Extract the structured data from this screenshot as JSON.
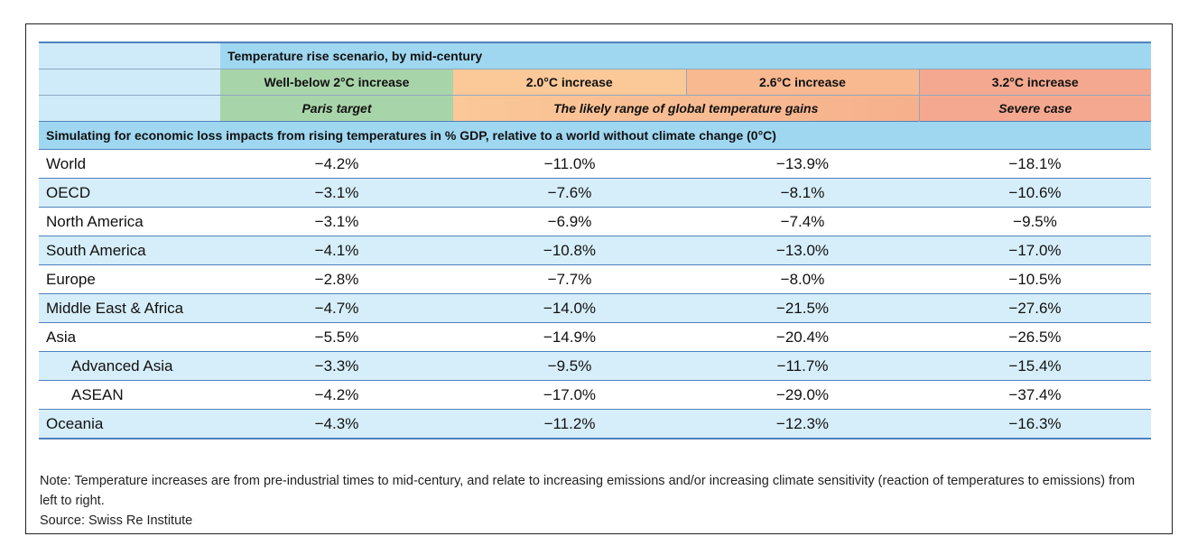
{
  "header": {
    "scenario_title": "Temperature rise scenario, by mid-century",
    "scenarios": [
      "Well-below 2°C increase",
      "2.0°C increase",
      "2.6°C increase",
      "3.2°C increase"
    ],
    "subtitles": {
      "paris": "Paris target",
      "likely": "The likely range of global temperature gains",
      "severe": "Severe case"
    }
  },
  "section_title": "Simulating for economic loss impacts from rising temperatures in % GDP, relative to a world without climate change (0°C)",
  "rows": [
    {
      "region": "World",
      "values": [
        "−4.2%",
        "−11.0%",
        "−13.9%",
        "−18.1%"
      ]
    },
    {
      "region": "OECD",
      "values": [
        "−3.1%",
        "−7.6%",
        "−8.1%",
        "−10.6%"
      ]
    },
    {
      "region": "North America",
      "values": [
        "−3.1%",
        "−6.9%",
        "−7.4%",
        "−9.5%"
      ]
    },
    {
      "region": "South America",
      "values": [
        "−4.1%",
        "−10.8%",
        "−13.0%",
        "−17.0%"
      ]
    },
    {
      "region": "Europe",
      "values": [
        "−2.8%",
        "−7.7%",
        "−8.0%",
        "−10.5%"
      ]
    },
    {
      "region": "Middle East & Africa",
      "values": [
        "−4.7%",
        "−14.0%",
        "−21.5%",
        "−27.6%"
      ]
    },
    {
      "region": "Asia",
      "values": [
        "−5.5%",
        "−14.9%",
        "−20.4%",
        "−26.5%"
      ]
    },
    {
      "region": "Advanced Asia",
      "values": [
        "−3.3%",
        "−9.5%",
        "−11.7%",
        "−15.4%"
      ]
    },
    {
      "region": "ASEAN",
      "values": [
        "−4.2%",
        "−17.0%",
        "−29.0%",
        "−37.4%"
      ]
    },
    {
      "region": "Oceania",
      "values": [
        "−4.3%",
        "−11.2%",
        "−12.3%",
        "−16.3%"
      ]
    }
  ],
  "note": {
    "text": "Note: Temperature increases are from pre-industrial times to mid-century, and relate to increasing emissions and/or increasing climate sensitivity (reaction of temperatures to emissions) from left to right.",
    "source": "Source: Swiss Re Institute"
  },
  "colors": {
    "header_blue": "#9fd7f0",
    "row_alt_blue": "#d6eef9",
    "green": "#a8d4a9",
    "orange": "#fbc898",
    "red": "#f4a88f",
    "rule_blue": "#4f81bd"
  }
}
